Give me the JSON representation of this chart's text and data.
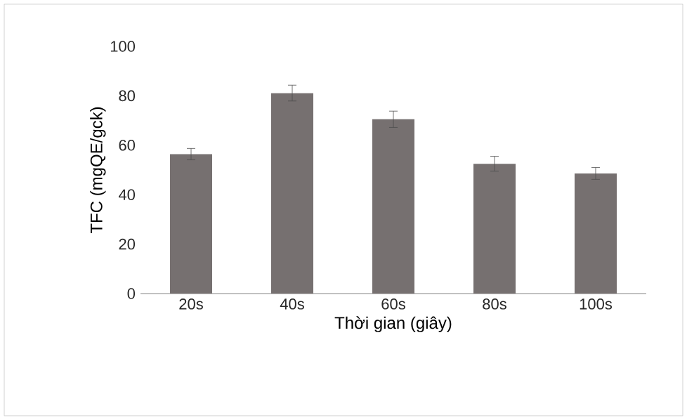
{
  "chart_data": {
    "type": "bar",
    "xlabel": "Thời gian (giây)",
    "ylabel": "TFC (mgQE/gck)",
    "categories": [
      "20s",
      "40s",
      "60s",
      "80s",
      "100s"
    ],
    "values": [
      56.4,
      81.1,
      70.5,
      52.5,
      48.6
    ],
    "errors": [
      2.3,
      3.2,
      3.3,
      3.0,
      2.4
    ],
    "color": "#767070",
    "ylim": [
      0,
      100
    ],
    "yticks": [
      0,
      20,
      40,
      60,
      80,
      100
    ],
    "grid": false,
    "legend": false
  }
}
